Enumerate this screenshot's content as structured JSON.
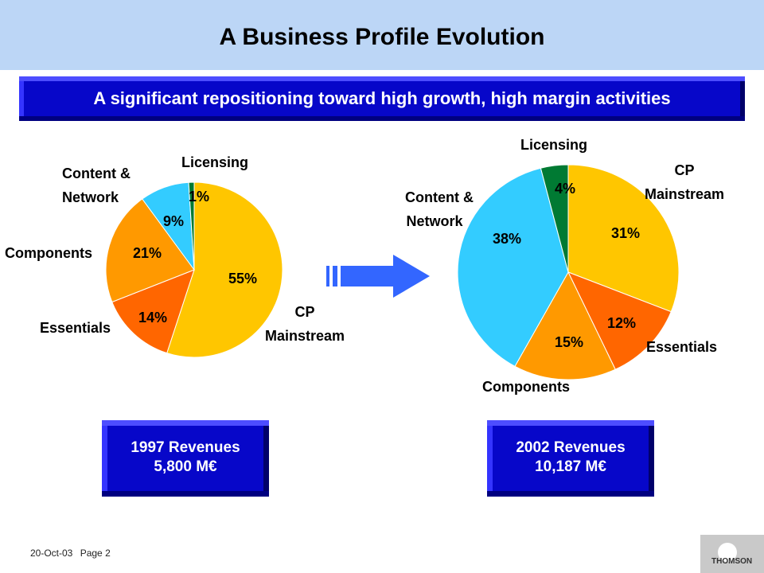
{
  "header": {
    "title": "A Business Profile Evolution"
  },
  "banner": {
    "text": "A significant repositioning toward high growth, high margin activities"
  },
  "chart_data": [
    {
      "type": "pie",
      "title": "",
      "slices": [
        {
          "label": "CP Mainstream",
          "value": 55,
          "label_text": "55%",
          "color": "#ffc600"
        },
        {
          "label": "Essentials",
          "value": 14,
          "label_text": "14%",
          "color": "#ff6600"
        },
        {
          "label": "Components",
          "value": 21,
          "label_text": "21%",
          "color": "#ff9900"
        },
        {
          "label": "Content & Network",
          "value": 9,
          "label_text": "9%",
          "color": "#33ccff"
        },
        {
          "label": "Licensing",
          "value": 1,
          "label_text": "1%",
          "color": "#007a33"
        }
      ]
    },
    {
      "type": "pie",
      "title": "",
      "slices": [
        {
          "label": "CP Mainstream",
          "value": 31,
          "label_text": "31%",
          "color": "#ffc600"
        },
        {
          "label": "Essentials",
          "value": 12,
          "label_text": "12%",
          "color": "#ff6600"
        },
        {
          "label": "Components",
          "value": 15,
          "label_text": "15%",
          "color": "#ff9900"
        },
        {
          "label": "Content & Network",
          "value": 38,
          "label_text": "38%",
          "color": "#33ccff"
        },
        {
          "label": "Licensing",
          "value": 4,
          "label_text": "4%",
          "color": "#007a33"
        }
      ]
    }
  ],
  "chart_labels": {
    "c1_licensing": "Licensing",
    "c1_content_1": "Content &",
    "c1_content_2": "Network",
    "c1_components": "Components",
    "c1_essentials": "Essentials",
    "c1_cp_1": "CP",
    "c1_cp_2": "Mainstream",
    "c2_licensing": "Licensing",
    "c2_content_1": "Content &",
    "c2_content_2": "Network",
    "c2_cp_1": "CP",
    "c2_cp_2": "Mainstream",
    "c2_essentials": "Essentials",
    "c2_components": "Components"
  },
  "revenue_1997": {
    "line1": "1997 Revenues",
    "line2": "5,800 M€"
  },
  "revenue_2002": {
    "line1": "2002 Revenues",
    "line2": "10,187 M€"
  },
  "footer": {
    "date": "20-Oct-03",
    "page": "Page 2",
    "page_right": "Page 2"
  },
  "logo": {
    "text": "THOMSON"
  },
  "colors": {
    "header_bg": "#bcd6f6",
    "banner_bg": "#0707c9",
    "arrow": "#3366ff"
  }
}
